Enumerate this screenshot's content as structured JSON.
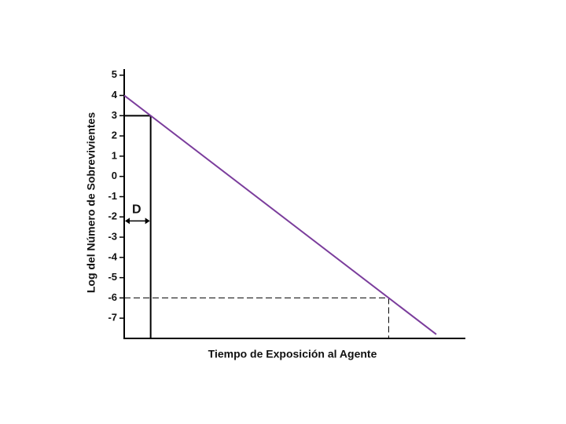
{
  "chart_data": {
    "type": "line",
    "x_label": "Tiempo de Exposición al Agente",
    "y_label": "Log del Número de Sobrevivientes",
    "x": [
      0,
      11.8
    ],
    "values": [
      4,
      -7.8
    ],
    "color": "#7b3d9c",
    "xlim": [
      0,
      12.9
    ],
    "ylim": [
      -8,
      5.3
    ],
    "yticks": [
      5,
      4,
      3,
      2,
      1,
      0,
      -1,
      -2,
      -3,
      -4,
      -5,
      -6,
      -7
    ],
    "reference_lines": [
      {
        "x": 1,
        "y": 3,
        "style": "solid"
      },
      {
        "x": 10,
        "y": -6,
        "style": "dashed"
      }
    ],
    "annotation": {
      "text": "D",
      "x0": 0,
      "x1": 1,
      "y": -2.2
    }
  }
}
